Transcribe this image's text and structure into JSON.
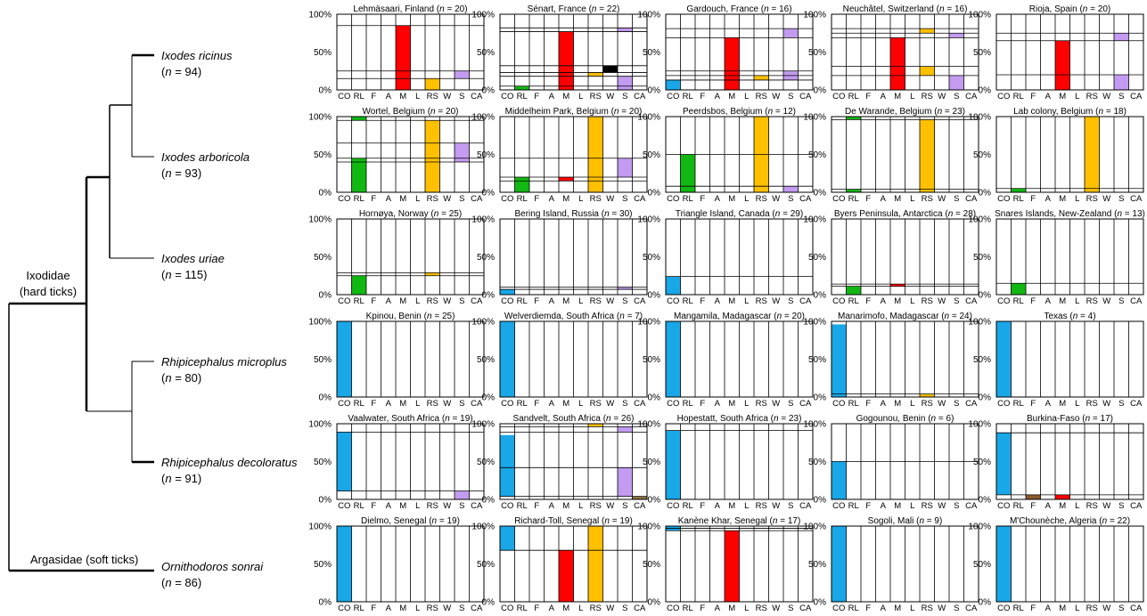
{
  "tree": {
    "families": [
      {
        "lines": [
          "Ixodidae",
          "(hard ticks)"
        ]
      },
      {
        "lines": [
          "Argasidae (soft ticks)"
        ]
      }
    ],
    "species": [
      {
        "name": "Ixodes ricinus",
        "n_label": "(n = 94)"
      },
      {
        "name": "Ixodes arboricola",
        "n_label": "(n = 93)"
      },
      {
        "name": "Ixodes uriae",
        "n_label": "(n = 115)"
      },
      {
        "name": "Rhipicephalus microplus",
        "n_label": "(n = 80)"
      },
      {
        "name": "Rhipicephalus decoloratus",
        "n_label": "(n = 91)"
      },
      {
        "name": "Ornithodoros sonrai",
        "n_label": "(n = 86)"
      }
    ]
  },
  "chart_data": {
    "type": "bar",
    "categories": [
      "CO",
      "RL",
      "F",
      "A",
      "M",
      "L",
      "RS",
      "W",
      "S",
      "CA"
    ],
    "yticks": [
      "100%",
      "50%",
      "0%"
    ],
    "ylim": [
      0,
      100
    ],
    "colors": {
      "CO": "#1aa7e8",
      "RL": "#12b812",
      "F": "#8b5a2b",
      "A": "#9e9e9e",
      "M": "#ff0000",
      "L": "#ffffff",
      "RS": "#ffc000",
      "W": "#000000",
      "S": "#c39bf0",
      "CA": "#8b7340"
    },
    "panels": [
      {
        "title": "Lehmäsaari, Finland (n = 20)",
        "bars": [
          {
            "c": "M",
            "v": 85
          },
          {
            "c": "RS",
            "v": 15
          },
          {
            "c": "S",
            "v": 25,
            "b": 15
          }
        ],
        "lines": [
          85,
          25,
          15
        ]
      },
      {
        "title": "Sénart, France (n = 22)",
        "bars": [
          {
            "c": "RL",
            "v": 5
          },
          {
            "c": "M",
            "v": 77
          },
          {
            "c": "RS",
            "v": 23,
            "b": 18
          },
          {
            "c": "W",
            "v": 32,
            "b": 23
          },
          {
            "c": "S",
            "v": 18
          },
          {
            "c": "S",
            "v": 82,
            "b": 77
          }
        ],
        "lines": [
          82,
          77,
          32,
          23,
          18,
          5
        ]
      },
      {
        "title": "Gardouch, France (n = 16)",
        "bars": [
          {
            "c": "CO",
            "v": 13
          },
          {
            "c": "M",
            "v": 69
          },
          {
            "c": "RS",
            "v": 19,
            "b": 13
          },
          {
            "c": "S",
            "v": 25,
            "b": 13
          },
          {
            "c": "S",
            "v": 81,
            "b": 69
          }
        ],
        "lines": [
          81,
          69,
          25,
          19,
          13
        ]
      },
      {
        "title": "Neuchâtel, Switzerland (n = 16)",
        "bars": [
          {
            "c": "M",
            "v": 69
          },
          {
            "c": "RS",
            "v": 31,
            "b": 19
          },
          {
            "c": "RS",
            "v": 81,
            "b": 75
          },
          {
            "c": "S",
            "v": 19
          },
          {
            "c": "S",
            "v": 75,
            "b": 69
          }
        ],
        "lines": [
          81,
          75,
          69,
          31,
          19
        ]
      },
      {
        "title": "Rioja, Spain (n = 20)",
        "bars": [
          {
            "c": "M",
            "v": 65
          },
          {
            "c": "S",
            "v": 20
          },
          {
            "c": "S",
            "v": 75,
            "b": 65
          }
        ],
        "lines": [
          75,
          65,
          20
        ]
      },
      {
        "title": "Wortel, Belgium (n = 20)",
        "bars": [
          {
            "c": "RL",
            "v": 45
          },
          {
            "c": "RL",
            "v": 100,
            "b": 95
          },
          {
            "c": "RS",
            "v": 95
          },
          {
            "c": "S",
            "v": 65,
            "b": 40
          }
        ],
        "lines": [
          95,
          65,
          45,
          40
        ]
      },
      {
        "title": "Middelheim Park, Belgium (n = 20)",
        "bars": [
          {
            "c": "RL",
            "v": 20
          },
          {
            "c": "M",
            "v": 20,
            "b": 15
          },
          {
            "c": "RS",
            "v": 100
          },
          {
            "c": "S",
            "v": 45,
            "b": 20
          }
        ],
        "lines": [
          45,
          20,
          15
        ]
      },
      {
        "title": "Peerdsbos, Belgium (n = 12)",
        "bars": [
          {
            "c": "RL",
            "v": 50
          },
          {
            "c": "RS",
            "v": 100
          },
          {
            "c": "S",
            "v": 8
          }
        ],
        "lines": [
          50,
          8
        ]
      },
      {
        "title": "De Warande, Belgium (n = 23)",
        "bars": [
          {
            "c": "RL",
            "v": 4
          },
          {
            "c": "RL",
            "v": 100,
            "b": 96
          },
          {
            "c": "RS",
            "v": 96
          }
        ],
        "lines": [
          96,
          4
        ]
      },
      {
        "title": "Lab colony, Belgium (n = 18)",
        "bars": [
          {
            "c": "RL",
            "v": 5
          },
          {
            "c": "RS",
            "v": 100
          }
        ],
        "lines": [
          5
        ]
      },
      {
        "title": "Hornøya, Norway (n = 25)",
        "bars": [
          {
            "c": "RL",
            "v": 25
          },
          {
            "c": "RS",
            "v": 29,
            "b": 25
          }
        ],
        "lines": [
          29,
          25
        ]
      },
      {
        "title": "Bering Island, Russia (n = 30)",
        "bars": [
          {
            "c": "CO",
            "v": 7
          },
          {
            "c": "S",
            "v": 10,
            "b": 7
          }
        ],
        "lines": [
          10,
          7
        ]
      },
      {
        "title": "Triangle Island, Canada (n = 29)",
        "bars": [
          {
            "c": "CO",
            "v": 24
          }
        ],
        "lines": [
          24
        ]
      },
      {
        "title": "Byers Peninsula, Antarctica (n = 28)",
        "bars": [
          {
            "c": "RL",
            "v": 11
          },
          {
            "c": "M",
            "v": 14,
            "b": 11
          }
        ],
        "lines": [
          14,
          11
        ]
      },
      {
        "title": "Snares Islands, New-Zealand (n = 13)",
        "bars": [
          {
            "c": "RL",
            "v": 15
          }
        ],
        "lines": [
          15
        ]
      },
      {
        "title": "Kpinou, Benin (n = 25)",
        "bars": [
          {
            "c": "CO",
            "v": 100
          }
        ],
        "lines": []
      },
      {
        "title": "Welverdiemda, South Africa (n = 7)",
        "bars": [
          {
            "c": "CO",
            "v": 100
          }
        ],
        "lines": []
      },
      {
        "title": "Mangamila, Madagascar (n = 20)",
        "bars": [
          {
            "c": "CO",
            "v": 100
          }
        ],
        "lines": []
      },
      {
        "title": "Manarimofo, Madagascar (n = 24)",
        "bars": [
          {
            "c": "CO",
            "v": 96
          },
          {
            "c": "RS",
            "v": 4
          }
        ],
        "lines": [
          4
        ]
      },
      {
        "title": "Texas (n = 4)",
        "bars": [
          {
            "c": "CO",
            "v": 100
          }
        ],
        "lines": []
      },
      {
        "title": "Vaalwater, South Africa (n = 19)",
        "bars": [
          {
            "c": "CO",
            "v": 89,
            "b": 11
          },
          {
            "c": "S",
            "v": 11
          }
        ],
        "lines": [
          89,
          11
        ]
      },
      {
        "title": "Sandvelt, South Africa (n = 26)",
        "bars": [
          {
            "c": "CO",
            "v": 85,
            "b": 4
          },
          {
            "c": "RS",
            "v": 100,
            "b": 96
          },
          {
            "c": "S",
            "v": 96,
            "b": 89
          },
          {
            "c": "S",
            "v": 42,
            "b": 4
          },
          {
            "c": "CA",
            "v": 4
          }
        ],
        "lines": [
          96,
          89,
          42,
          4
        ]
      },
      {
        "title": "Hopestatt, South Africa (n = 23)",
        "bars": [
          {
            "c": "CO",
            "v": 91
          }
        ],
        "lines": [
          91
        ]
      },
      {
        "title": "Gogounou, Benin (n = 6)",
        "bars": [
          {
            "c": "CO",
            "v": 50
          }
        ],
        "lines": [
          50
        ]
      },
      {
        "title": "Burkina-Faso (n = 17)",
        "bars": [
          {
            "c": "CO",
            "v": 88,
            "b": 6
          },
          {
            "c": "F",
            "v": 6
          },
          {
            "c": "M",
            "v": 6
          }
        ],
        "lines": [
          88,
          6
        ]
      },
      {
        "title": "Dielmo, Senegal (n = 19)",
        "bars": [
          {
            "c": "CO",
            "v": 100
          }
        ],
        "lines": []
      },
      {
        "title": "Richard-Toll, Senegal (n = 19)",
        "bars": [
          {
            "c": "CO",
            "v": 100,
            "b": 68
          },
          {
            "c": "M",
            "v": 68
          },
          {
            "c": "RS",
            "v": 100
          }
        ],
        "lines": [
          68
        ]
      },
      {
        "title": "Kanène Khar, Senegal (n = 17)",
        "bars": [
          {
            "c": "CO",
            "v": 100,
            "b": 94
          },
          {
            "c": "M",
            "v": 94
          }
        ],
        "lines": [
          97,
          94
        ]
      },
      {
        "title": "Sogoli, Mali (n = 9)",
        "bars": [
          {
            "c": "CO",
            "v": 100
          }
        ],
        "lines": []
      },
      {
        "title": "M'Chounèche, Algeria (n = 22)",
        "bars": [
          {
            "c": "CO",
            "v": 100
          }
        ],
        "lines": []
      }
    ]
  }
}
